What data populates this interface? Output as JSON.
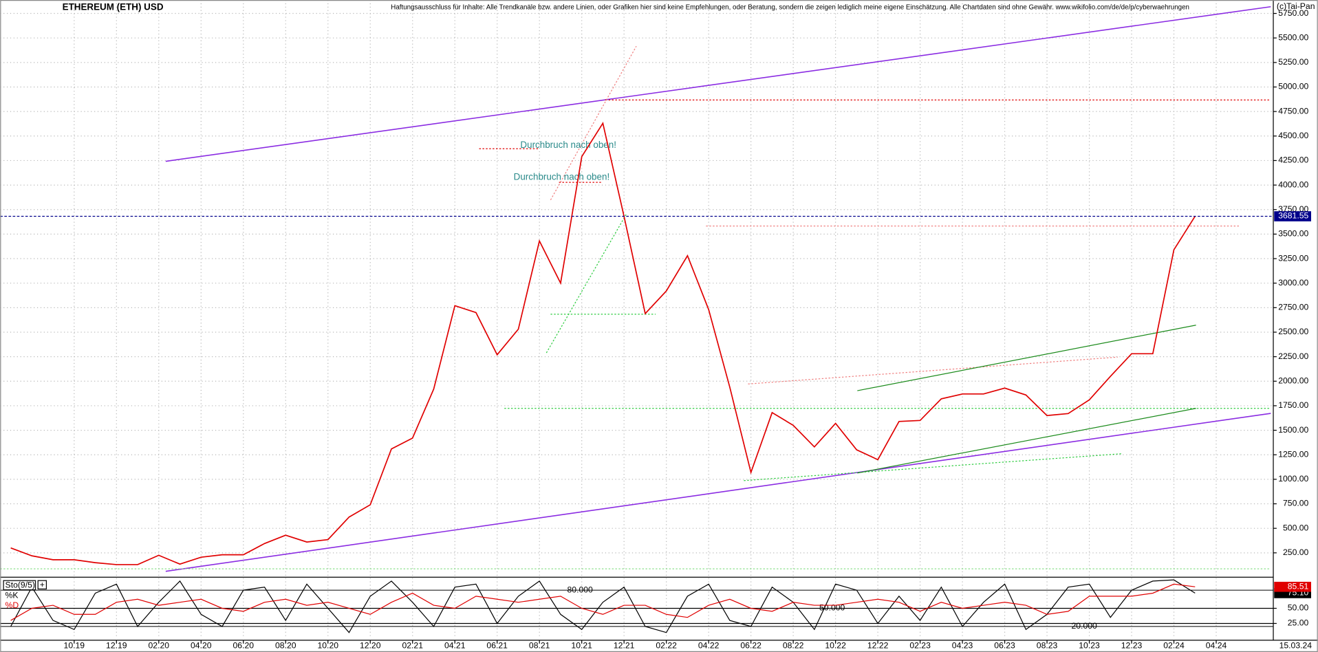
{
  "header": {
    "disclaimer": "Haftungsausschluss für Inhalte: Alle Trendkanäle bzw. andere Linien, oder Grafiken hier sind keine Empfehlungen, oder Beratung, sondern die zeigen lediglich meine eigene Einschätzung. Alle Chartdaten sind ohne Gewähr. www.wikifolio.com/de/de/p/cyberwaehrungen",
    "copyright": "(c)Tai-Pan",
    "date": "15.03.24"
  },
  "chart_data": [
    {
      "type": "line",
      "title": "ETHEREUM (ETH) USD",
      "grid": true,
      "x": [
        -3,
        -2,
        -1,
        0,
        1,
        2,
        3,
        4,
        5,
        6,
        7,
        8,
        9,
        10,
        11,
        12,
        13,
        14,
        15,
        16,
        17,
        18,
        19,
        20,
        21,
        22,
        23,
        24,
        25,
        26,
        27,
        28,
        29,
        30,
        31,
        32,
        33,
        34,
        35,
        36,
        37,
        38,
        39,
        40,
        41,
        42,
        43,
        44,
        45,
        46,
        47,
        48,
        49,
        50,
        51,
        52,
        53
      ],
      "series": [
        {
          "name": "ETHEREUM (ETH) USD",
          "color": "#e00000",
          "values": [
            300,
            220,
            180,
            180,
            150,
            130,
            130,
            225,
            135,
            205,
            230,
            230,
            345,
            430,
            360,
            385,
            615,
            740,
            1310,
            1420,
            1920,
            2770,
            2700,
            2270,
            2530,
            3430,
            3000,
            4290,
            4630,
            3680,
            2690,
            2920,
            3280,
            2730,
            1940,
            1070,
            1680,
            1550,
            1330,
            1570,
            1300,
            1200,
            1590,
            1600,
            1820,
            1870,
            1870,
            1930,
            1860,
            1650,
            1670,
            1810,
            2050,
            2280,
            2280,
            3340,
            3681.55
          ]
        }
      ],
      "xlim": [
        -3.5,
        56.7
      ],
      "ylim": [
        10,
        5887
      ],
      "xticks": [
        {
          "value": 0,
          "label": "10.19"
        },
        {
          "value": 2,
          "label": "12.19"
        },
        {
          "value": 4,
          "label": "02.20"
        },
        {
          "value": 6,
          "label": "04.20"
        },
        {
          "value": 8,
          "label": "06.20"
        },
        {
          "value": 10,
          "label": "08.20"
        },
        {
          "value": 12,
          "label": "10.20"
        },
        {
          "value": 14,
          "label": "12.20"
        },
        {
          "value": 16,
          "label": "02.21"
        },
        {
          "value": 18,
          "label": "04.21"
        },
        {
          "value": 20,
          "label": "06.21"
        },
        {
          "value": 22,
          "label": "08.21"
        },
        {
          "value": 24,
          "label": "10.21"
        },
        {
          "value": 26,
          "label": "12.21"
        },
        {
          "value": 28,
          "label": "02.22"
        },
        {
          "value": 30,
          "label": "04.22"
        },
        {
          "value": 32,
          "label": "06.22"
        },
        {
          "value": 34,
          "label": "08.22"
        },
        {
          "value": 36,
          "label": "10.22"
        },
        {
          "value": 38,
          "label": "12.22"
        },
        {
          "value": 40,
          "label": "02.23"
        },
        {
          "value": 42,
          "label": "04.23"
        },
        {
          "value": 44,
          "label": "06.23"
        },
        {
          "value": 46,
          "label": "08.23"
        },
        {
          "value": 48,
          "label": "10.23"
        },
        {
          "value": 50,
          "label": "12.23"
        },
        {
          "value": 52,
          "label": "02.24"
        },
        {
          "value": 54,
          "label": "04.24"
        }
      ],
      "yticks": [
        {
          "value": 250,
          "label": "250.00"
        },
        {
          "value": 500,
          "label": "500.00"
        },
        {
          "value": 750,
          "label": "750.00"
        },
        {
          "value": 1000,
          "label": "1000.00"
        },
        {
          "value": 1250,
          "label": "1250.00"
        },
        {
          "value": 1500,
          "label": "1500.00"
        },
        {
          "value": 1750,
          "label": "1750.00"
        },
        {
          "value": 2000,
          "label": "2000.00"
        },
        {
          "value": 2250,
          "label": "2250.00"
        },
        {
          "value": 2500,
          "label": "2500.00"
        },
        {
          "value": 2750,
          "label": "2750.00"
        },
        {
          "value": 3000,
          "label": "3000.00"
        },
        {
          "value": 3250,
          "label": "3250.00"
        },
        {
          "value": 3500,
          "label": "3500.00"
        },
        {
          "value": 3750,
          "label": "3750.00"
        },
        {
          "value": 4000,
          "label": "4000.00"
        },
        {
          "value": 4250,
          "label": "4250.00"
        },
        {
          "value": 4500,
          "label": "4500.00"
        },
        {
          "value": 4750,
          "label": "4750.00"
        },
        {
          "value": 5000,
          "label": "5000.00"
        },
        {
          "value": 5250,
          "label": "5250.00"
        },
        {
          "value": 5500,
          "label": "5500.00"
        },
        {
          "value": 5750,
          "label": "5750.00"
        }
      ],
      "annotations": [
        "Durchbruch nach oben!",
        "Durchbruch nach oben!"
      ]
    },
    {
      "type": "line",
      "title": "Sto(9/5)",
      "grid": true,
      "x": [
        -3,
        -2,
        -1,
        0,
        1,
        2,
        3,
        4,
        5,
        6,
        7,
        8,
        9,
        10,
        11,
        12,
        13,
        14,
        15,
        16,
        17,
        18,
        19,
        20,
        21,
        22,
        23,
        24,
        25,
        26,
        27,
        28,
        29,
        30,
        31,
        32,
        33,
        34,
        35,
        36,
        37,
        38,
        39,
        40,
        41,
        42,
        43,
        44,
        45,
        46,
        47,
        48,
        49,
        50,
        51,
        52,
        53
      ],
      "series": [
        {
          "name": "%K",
          "color": "#000000",
          "last_label": "75.10",
          "values": [
            20,
            85,
            30,
            15,
            75,
            90,
            20,
            60,
            95,
            40,
            20,
            80,
            85,
            30,
            90,
            50,
            10,
            70,
            95,
            60,
            20,
            85,
            90,
            25,
            70,
            95,
            40,
            15,
            60,
            85,
            20,
            10,
            70,
            90,
            30,
            20,
            85,
            60,
            15,
            90,
            80,
            25,
            70,
            30,
            85,
            20,
            60,
            90,
            15,
            40,
            85,
            90,
            35,
            80,
            95,
            97,
            75.1
          ]
        },
        {
          "name": "%D",
          "color": "#e00000",
          "last_label": "85.51",
          "values": [
            30,
            50,
            55,
            40,
            40,
            60,
            65,
            55,
            60,
            65,
            50,
            45,
            60,
            65,
            55,
            60,
            50,
            40,
            60,
            75,
            55,
            50,
            70,
            65,
            60,
            65,
            70,
            50,
            40,
            55,
            55,
            40,
            35,
            55,
            65,
            50,
            45,
            60,
            55,
            55,
            60,
            65,
            60,
            45,
            60,
            50,
            55,
            60,
            55,
            40,
            45,
            70,
            70,
            70,
            75,
            90,
            85.51
          ]
        }
      ],
      "xlim": [
        -3.5,
        56.7
      ],
      "ylim": [
        0,
        100
      ],
      "yticks": [
        {
          "value": 25,
          "label": "25.00"
        },
        {
          "value": 50,
          "label": "50.00"
        }
      ],
      "levels": [
        {
          "value": 80,
          "label": "80.000"
        },
        {
          "value": 50,
          "label": "50.000"
        },
        {
          "value": 20,
          "label": "20.000"
        }
      ]
    }
  ]
}
